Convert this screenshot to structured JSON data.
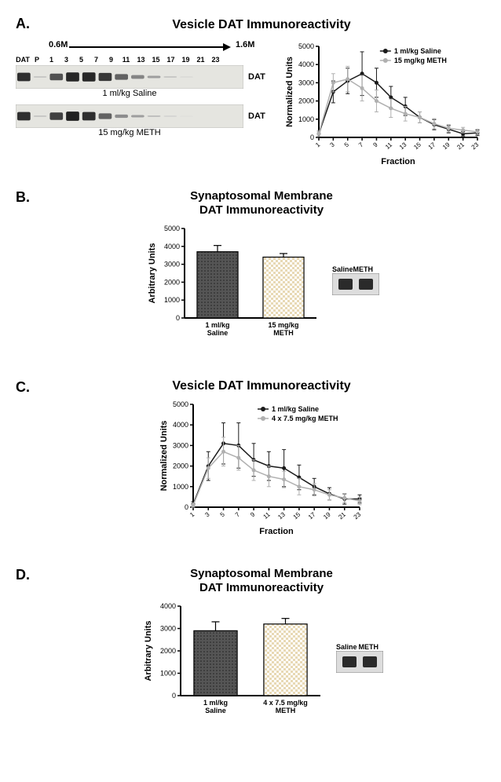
{
  "panelA": {
    "label": "A.",
    "title": "Vesicle DAT Immunoreactivity",
    "gradient_start": "0.6M",
    "gradient_end": "1.6M",
    "lane_labels": [
      "DAT",
      "P",
      "1",
      "3",
      "5",
      "7",
      "9",
      "11",
      "13",
      "15",
      "17",
      "19",
      "21",
      "23"
    ],
    "blot1_caption": "1 ml/kg Saline",
    "blot2_caption": "15 mg/kg METH",
    "dat_label": "DAT",
    "chart": {
      "ylabel": "Normalized Units",
      "xlabel": "Fraction",
      "x_ticks": [
        "1",
        "3",
        "5",
        "7",
        "9",
        "11",
        "13",
        "15",
        "17",
        "19",
        "21",
        "23"
      ],
      "ymax": 5000,
      "ytick_step": 1000,
      "series1": {
        "name": "1 ml/kg Saline",
        "color": "#1a1a1a",
        "y": [
          200,
          2500,
          3100,
          3500,
          3000,
          2200,
          1700,
          1100,
          700,
          450,
          200,
          250
        ],
        "err": [
          150,
          600,
          700,
          1200,
          800,
          600,
          500,
          300,
          280,
          200,
          120,
          150
        ]
      },
      "series2": {
        "name": "15 mg/kg METH",
        "color": "#b0b0b0",
        "y": [
          200,
          3000,
          3200,
          2700,
          2000,
          1600,
          1300,
          1100,
          750,
          500,
          400,
          300
        ],
        "err": [
          150,
          500,
          700,
          700,
          600,
          500,
          400,
          300,
          280,
          200,
          150,
          150
        ]
      }
    }
  },
  "panelB": {
    "label": "B.",
    "title_line1": "Synaptosomal Membrane",
    "title_line2": "DAT Immunoreactivity",
    "ylabel": "Arbitrary Units",
    "ymax": 5000,
    "ytick_step": 1000,
    "bars": [
      {
        "label": "1 ml/kg\nSaline",
        "value": 3700,
        "err": 350,
        "fill": "#4a4a4a",
        "pattern": "dots"
      },
      {
        "label": "15 mg/kg\nMETH",
        "value": 3400,
        "err": 200,
        "fill": "#f5e6c8",
        "pattern": "checker"
      }
    ],
    "inset_labels": [
      "Saline",
      "METH"
    ]
  },
  "panelC": {
    "label": "C.",
    "title": "Vesicle DAT Immunoreactivity",
    "chart": {
      "ylabel": "Normalized Units",
      "xlabel": "Fraction",
      "x_ticks": [
        "1",
        "3",
        "5",
        "7",
        "9",
        "11",
        "13",
        "15",
        "17",
        "19",
        "21",
        "23"
      ],
      "ymax": 5000,
      "ytick_step": 1000,
      "series1": {
        "name": "1 ml/kg Saline",
        "color": "#1a1a1a",
        "y": [
          150,
          2000,
          3100,
          3000,
          2300,
          2000,
          1900,
          1450,
          1000,
          650,
          400,
          400
        ],
        "err": [
          120,
          700,
          1000,
          1100,
          800,
          700,
          900,
          600,
          400,
          300,
          250,
          200
        ]
      },
      "series2": {
        "name": "4 x 7.5 mg/kg METH",
        "color": "#b0b0b0",
        "y": [
          100,
          1900,
          2700,
          2400,
          1800,
          1500,
          1350,
          1000,
          850,
          600,
          450,
          300
        ],
        "err": [
          100,
          500,
          700,
          600,
          500,
          500,
          400,
          400,
          300,
          250,
          220,
          180
        ]
      }
    }
  },
  "panelD": {
    "label": "D.",
    "title_line1": "Synaptosomal Membrane",
    "title_line2": "DAT Immunoreactivity",
    "ylabel": "Arbitrary Units",
    "ymax": 4000,
    "ytick_step": 1000,
    "bars": [
      {
        "label": "1 ml/kg\nSaline",
        "value": 2900,
        "err": 400,
        "fill": "#4a4a4a",
        "pattern": "dots"
      },
      {
        "label": "4 x 7.5 mg/kg\nMETH",
        "value": 3200,
        "err": 250,
        "fill": "#f5e6c8",
        "pattern": "checker"
      }
    ],
    "inset_labels": [
      "Saline",
      "METH"
    ]
  }
}
